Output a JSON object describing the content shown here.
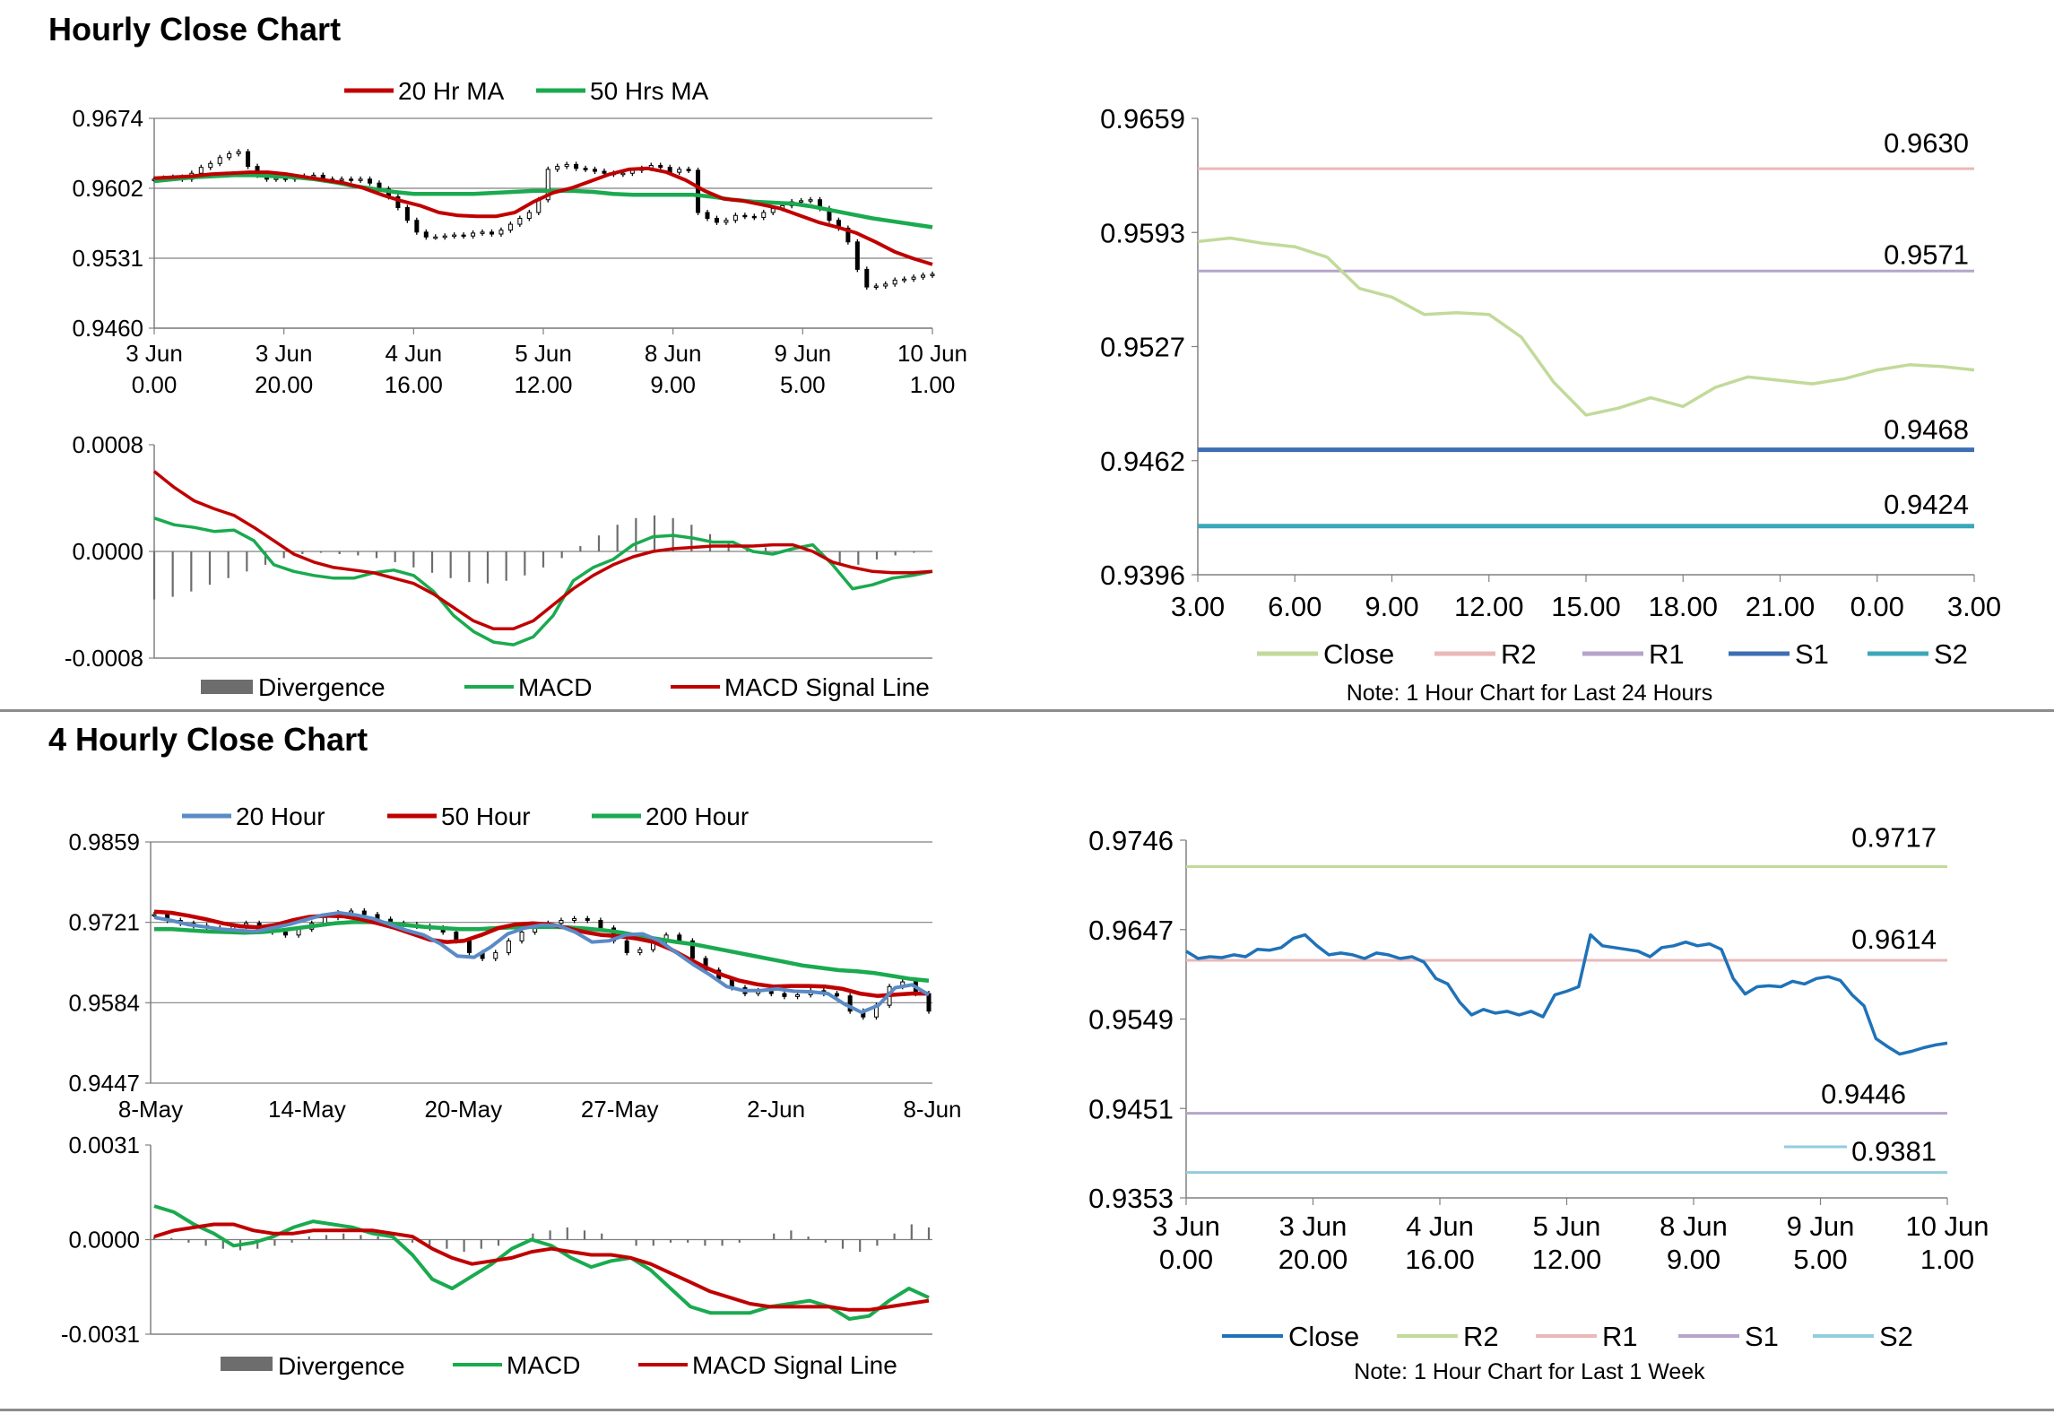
{
  "titles": {
    "hourly": "Hourly Close Chart",
    "four_hourly": "4 Hourly Close Chart"
  },
  "colors": {
    "red": "#c00000",
    "green": "#1aaa4f",
    "blue": "#5b8bc6",
    "dark_blue": "#3d6eb3",
    "teal": "#3ba7ba",
    "light_green": "#c2da9a",
    "pink": "#eab8b7",
    "lavender": "#b6a4cb",
    "close_blue": "#1f72b8",
    "light_teal": "#92cddc",
    "bar_gray": "#6d6d6d",
    "grid": "#808080"
  },
  "chart_data": [
    {
      "id": "hourly_price",
      "type": "line",
      "title": "",
      "ylim": [
        0.946,
        0.9674
      ],
      "yticks": [
        "0.9674",
        "0.9602",
        "0.9531",
        "0.9460"
      ],
      "xticks": [
        [
          "3 Jun",
          "0.00"
        ],
        [
          "3 Jun",
          "20.00"
        ],
        [
          "4 Jun",
          "16.00"
        ],
        [
          "5 Jun",
          "12.00"
        ],
        [
          "8 Jun",
          "9.00"
        ],
        [
          "9 Jun",
          "5.00"
        ],
        [
          "10 Jun",
          "1.00"
        ]
      ],
      "legend": [
        "20 Hr MA",
        "50 Hrs MA"
      ],
      "series": [
        {
          "name": "Close",
          "values": [
            0.9612,
            0.9613,
            0.9614,
            0.9612,
            0.9618,
            0.9624,
            0.9628,
            0.9634,
            0.9638,
            0.964,
            0.9625,
            0.9616,
            0.9612,
            0.9613,
            0.9612,
            0.9614,
            0.9615,
            0.9616,
            0.9612,
            0.9611,
            0.9612,
            0.9611,
            0.9612,
            0.9608,
            0.9602,
            0.9594,
            0.9583,
            0.957,
            0.9558,
            0.9553,
            0.9553,
            0.9554,
            0.9555,
            0.9554,
            0.9557,
            0.9558,
            0.9556,
            0.956,
            0.9566,
            0.9572,
            0.9578,
            0.9591,
            0.9622,
            0.9625,
            0.9627,
            0.9623,
            0.9622,
            0.962,
            0.9618,
            0.9617,
            0.9618,
            0.9621,
            0.9623,
            0.9626,
            0.9624,
            0.9619,
            0.9622,
            0.9621,
            0.9578,
            0.9572,
            0.9568,
            0.957,
            0.9575,
            0.9574,
            0.9573,
            0.9578,
            0.9582,
            0.9585,
            0.9589,
            0.959,
            0.9591,
            0.9582,
            0.957,
            0.9562,
            0.9548,
            0.952,
            0.9502,
            0.9503,
            0.9505,
            0.9509,
            0.951,
            0.9512,
            0.9514,
            0.9515
          ]
        },
        {
          "name": "20 Hr MA",
          "values": [
            0.9613,
            0.9614,
            0.9615,
            0.9617,
            0.9618,
            0.9619,
            0.9619,
            0.9617,
            0.9614,
            0.9611,
            0.9608,
            0.9603,
            0.9596,
            0.959,
            0.9585,
            0.9578,
            0.9575,
            0.9574,
            0.9574,
            0.9578,
            0.9589,
            0.9598,
            0.9603,
            0.961,
            0.9617,
            0.9622,
            0.9623,
            0.9619,
            0.9611,
            0.96,
            0.9592,
            0.959,
            0.9586,
            0.9582,
            0.9575,
            0.9568,
            0.9563,
            0.9557,
            0.9548,
            0.9538,
            0.9531,
            0.9525
          ]
        },
        {
          "name": "50 Hrs MA",
          "values": [
            0.961,
            0.9612,
            0.9614,
            0.9615,
            0.9616,
            0.9616,
            0.9615,
            0.9614,
            0.9612,
            0.9609,
            0.9605,
            0.9602,
            0.9599,
            0.9597,
            0.9597,
            0.9597,
            0.9597,
            0.9598,
            0.9599,
            0.96,
            0.96,
            0.96,
            0.9599,
            0.9597,
            0.9596,
            0.9596,
            0.9596,
            0.9596,
            0.9594,
            0.9591,
            0.9589,
            0.9588,
            0.9587,
            0.9584,
            0.958,
            0.9576,
            0.9572,
            0.9569,
            0.9566,
            0.9563
          ]
        }
      ]
    },
    {
      "id": "hourly_macd",
      "type": "line",
      "ylim": [
        -0.0008,
        0.0008
      ],
      "yticks": [
        "0.0008",
        "0.0000",
        "-0.0008"
      ],
      "legend": [
        "Divergence",
        "MACD",
        "MACD Signal Line"
      ],
      "series": [
        {
          "name": "Divergence",
          "values": [
            -0.00036,
            -0.00034,
            -0.0003,
            -0.00025,
            -0.0002,
            -0.00015,
            -0.0001,
            -5e-05,
            -2e-05,
            -1e-05,
            -2e-05,
            -3e-05,
            -5e-05,
            -8e-05,
            -0.00012,
            -0.00016,
            -0.0002,
            -0.00023,
            -0.00024,
            -0.00022,
            -0.00018,
            -0.00012,
            -5e-05,
            4e-05,
            0.00012,
            0.0002,
            0.00025,
            0.00027,
            0.00025,
            0.0002,
            0.00013,
            8e-05,
            5e-05,
            3e-05,
            1e-05,
            0.0,
            -4e-05,
            -0.0001,
            -0.0001,
            -6e-05,
            -3e-05,
            -1e-05,
            0.0
          ]
        },
        {
          "name": "MACD",
          "values": [
            0.00025,
            0.0002,
            0.00018,
            0.00015,
            0.00016,
            8e-05,
            -0.0001,
            -0.00015,
            -0.00018,
            -0.0002,
            -0.0002,
            -0.00016,
            -0.00014,
            -0.00018,
            -0.0003,
            -0.00048,
            -0.0006,
            -0.00068,
            -0.0007,
            -0.00064,
            -0.00048,
            -0.00022,
            -0.00012,
            -6e-05,
            5e-05,
            0.00011,
            0.00012,
            0.0001,
            7e-05,
            7e-05,
            0.0,
            -2e-05,
            2e-05,
            5e-05,
            -0.0001,
            -0.00028,
            -0.00025,
            -0.0002,
            -0.00018,
            -0.00015
          ]
        },
        {
          "name": "MACD Signal Line",
          "values": [
            0.0006,
            0.00048,
            0.00038,
            0.00032,
            0.00027,
            0.00018,
            8e-05,
            -2e-05,
            -8e-05,
            -0.00012,
            -0.00014,
            -0.00016,
            -0.0002,
            -0.00024,
            -0.00032,
            -0.00042,
            -0.00052,
            -0.00058,
            -0.00058,
            -0.00052,
            -0.0004,
            -0.00028,
            -0.00018,
            -0.0001,
            -4e-05,
            0.0,
            2e-05,
            3e-05,
            4e-05,
            4e-05,
            4e-05,
            5e-05,
            5e-05,
            0.0,
            -8e-05,
            -0.00012,
            -0.00015,
            -0.00016,
            -0.00016,
            -0.00015
          ]
        }
      ]
    },
    {
      "id": "hourly_levels",
      "type": "line",
      "ylim": [
        0.9396,
        0.9659
      ],
      "yticks": [
        "0.9659",
        "0.9593",
        "0.9527",
        "0.9462",
        "0.9396"
      ],
      "xticks": [
        "3.00",
        "6.00",
        "9.00",
        "12.00",
        "15.00",
        "18.00",
        "21.00",
        "0.00",
        "3.00"
      ],
      "note": "Note: 1 Hour Chart for Last 24 Hours",
      "legend": [
        "Close",
        "R2",
        "R1",
        "S1",
        "S2"
      ],
      "series": [
        {
          "name": "Close",
          "values": [
            0.9588,
            0.959,
            0.9587,
            0.9585,
            0.9579,
            0.9561,
            0.9556,
            0.9546,
            0.9547,
            0.9546,
            0.9533,
            0.9507,
            0.9488,
            0.9492,
            0.9498,
            0.9493,
            0.9504,
            0.951,
            0.9508,
            0.9506,
            0.9509,
            0.9514,
            0.9517,
            0.9516,
            0.9514
          ]
        }
      ],
      "levels": [
        {
          "name": "R2",
          "value": 0.963,
          "label": "0.9630"
        },
        {
          "name": "R1",
          "value": 0.9571,
          "label": "0.9571"
        },
        {
          "name": "S1",
          "value": 0.9468,
          "label": "0.9468"
        },
        {
          "name": "S2",
          "value": 0.9424,
          "label": "0.9424"
        }
      ]
    },
    {
      "id": "four_hourly_price",
      "type": "line",
      "ylim": [
        0.9447,
        0.9859
      ],
      "yticks": [
        "0.9859",
        "0.9721",
        "0.9584",
        "0.9447"
      ],
      "xticks": [
        "8-May",
        "14-May",
        "20-May",
        "27-May",
        "2-Jun",
        "8-Jun"
      ],
      "legend": [
        "20 Hour",
        "50 Hour",
        "200 Hour"
      ],
      "series": [
        {
          "name": "Close",
          "values": [
            0.9735,
            0.9725,
            0.972,
            0.9716,
            0.9712,
            0.9708,
            0.9715,
            0.972,
            0.9712,
            0.9705,
            0.97,
            0.971,
            0.972,
            0.973,
            0.9738,
            0.9741,
            0.9735,
            0.9727,
            0.972,
            0.9718,
            0.9715,
            0.9712,
            0.9705,
            0.969,
            0.967,
            0.966,
            0.967,
            0.969,
            0.9705,
            0.9715,
            0.972,
            0.9725,
            0.9728,
            0.9725,
            0.9712,
            0.969,
            0.967,
            0.9675,
            0.969,
            0.97,
            0.969,
            0.966,
            0.964,
            0.9625,
            0.961,
            0.96,
            0.9605,
            0.96,
            0.9595,
            0.9598,
            0.9605,
            0.96,
            0.9596,
            0.957,
            0.956,
            0.958,
            0.9612,
            0.962,
            0.96,
            0.957
          ]
        },
        {
          "name": "20 Hour",
          "values": [
            0.973,
            0.9725,
            0.9718,
            0.9714,
            0.971,
            0.9708,
            0.9706,
            0.9712,
            0.9718,
            0.9726,
            0.9734,
            0.9738,
            0.9734,
            0.9728,
            0.9718,
            0.9708,
            0.97,
            0.9685,
            0.9664,
            0.9662,
            0.968,
            0.9702,
            0.9712,
            0.9717,
            0.9716,
            0.9705,
            0.9688,
            0.969,
            0.97,
            0.9702,
            0.969,
            0.967,
            0.965,
            0.9632,
            0.9612,
            0.9605,
            0.9605,
            0.9608,
            0.9604,
            0.9603,
            0.96,
            0.9582,
            0.9568,
            0.958,
            0.961,
            0.9615,
            0.9598
          ]
        },
        {
          "name": "50 Hour",
          "values": [
            0.974,
            0.9738,
            0.9733,
            0.9727,
            0.972,
            0.9715,
            0.9713,
            0.9717,
            0.9725,
            0.9731,
            0.9733,
            0.9732,
            0.9727,
            0.972,
            0.9712,
            0.9702,
            0.9692,
            0.9688,
            0.969,
            0.97,
            0.9712,
            0.9718,
            0.972,
            0.9718,
            0.9712,
            0.9705,
            0.97,
            0.9698,
            0.9694,
            0.9688,
            0.9676,
            0.966,
            0.9645,
            0.9632,
            0.9622,
            0.9616,
            0.9612,
            0.9613,
            0.9613,
            0.9612,
            0.9608,
            0.96,
            0.9596,
            0.9598,
            0.96,
            0.96
          ]
        },
        {
          "name": "200 Hour",
          "values": [
            0.971,
            0.971,
            0.9708,
            0.9706,
            0.9705,
            0.9704,
            0.9705,
            0.9708,
            0.9712,
            0.9716,
            0.972,
            0.9722,
            0.9722,
            0.972,
            0.9717,
            0.9714,
            0.9712,
            0.971,
            0.971,
            0.9712,
            0.9713,
            0.9714,
            0.9714,
            0.9713,
            0.9711,
            0.9708,
            0.9704,
            0.9698,
            0.9693,
            0.9688,
            0.9684,
            0.9678,
            0.9672,
            0.9666,
            0.966,
            0.9654,
            0.9648,
            0.9644,
            0.964,
            0.9638,
            0.9635,
            0.963,
            0.9625,
            0.9622
          ]
        }
      ]
    },
    {
      "id": "four_hourly_macd",
      "type": "line",
      "ylim": [
        -0.0031,
        0.0031
      ],
      "yticks": [
        "0.0031",
        "0.0000",
        "-0.0031"
      ],
      "legend": [
        "Divergence",
        "MACD",
        "MACD Signal Line"
      ],
      "series": [
        {
          "name": "Divergence",
          "values": [
            0.0001,
            5e-05,
            -0.0001,
            -0.0002,
            -0.0003,
            -0.00035,
            -0.0003,
            -0.0002,
            -0.0001,
            0.0001,
            0.00015,
            0.0002,
            0.00015,
            0.0001,
            0.0,
            -0.0001,
            -0.0002,
            -0.0003,
            -0.0004,
            -0.0003,
            -0.0002,
            0.0,
            0.0002,
            0.0003,
            0.0004,
            0.0003,
            0.0002,
            0.0,
            -0.0002,
            -0.0002,
            -0.0001,
            -0.0001,
            -0.0002,
            -0.0002,
            -0.0001,
            0.0,
            0.0002,
            0.0003,
            0.0001,
            -0.0001,
            -0.0003,
            -0.0004,
            -0.0002,
            0.0002,
            0.0005,
            0.0004
          ]
        },
        {
          "name": "MACD",
          "values": [
            0.0011,
            0.0009,
            0.0005,
            0.0002,
            -0.0002,
            -0.0001,
            0.0001,
            0.0004,
            0.0006,
            0.0005,
            0.0004,
            0.0002,
            0.0001,
            -0.0005,
            -0.0013,
            -0.0016,
            -0.0012,
            -0.0008,
            -0.0003,
            0.0,
            -0.0002,
            -0.0006,
            -0.0009,
            -0.0007,
            -0.0006,
            -0.001,
            -0.0016,
            -0.0022,
            -0.0024,
            -0.0024,
            -0.0024,
            -0.0022,
            -0.0021,
            -0.002,
            -0.0022,
            -0.0026,
            -0.0025,
            -0.002,
            -0.0016,
            -0.0019
          ]
        },
        {
          "name": "MACD Signal Line",
          "values": [
            0.0001,
            0.0003,
            0.0004,
            0.0005,
            0.0005,
            0.0003,
            0.0002,
            0.0002,
            0.0003,
            0.0003,
            0.0003,
            0.0003,
            0.0002,
            0.0001,
            -0.0003,
            -0.0006,
            -0.0008,
            -0.0007,
            -0.0006,
            -0.0004,
            -0.0003,
            -0.0004,
            -0.0005,
            -0.0005,
            -0.0006,
            -0.0008,
            -0.0011,
            -0.0014,
            -0.0017,
            -0.0019,
            -0.0021,
            -0.0022,
            -0.0022,
            -0.0022,
            -0.0022,
            -0.0023,
            -0.0023,
            -0.0022,
            -0.0021,
            -0.002
          ]
        }
      ]
    },
    {
      "id": "four_hourly_levels",
      "type": "line",
      "ylim": [
        0.9353,
        0.9746
      ],
      "yticks": [
        "0.9746",
        "0.9647",
        "0.9549",
        "0.9451",
        "0.9353"
      ],
      "xticks": [
        [
          "3 Jun",
          "0.00"
        ],
        [
          "3 Jun",
          "20.00"
        ],
        [
          "4 Jun",
          "16.00"
        ],
        [
          "5 Jun",
          "12.00"
        ],
        [
          "8 Jun",
          "9.00"
        ],
        [
          "9 Jun",
          "5.00"
        ],
        [
          "10 Jun",
          "1.00"
        ]
      ],
      "note": "Note: 1 Hour Chart for Last 1 Week",
      "legend": [
        "Close",
        "R2",
        "R1",
        "S1",
        "S2"
      ],
      "series": [
        {
          "name": "Close",
          "values": [
            0.9624,
            0.9616,
            0.9618,
            0.9617,
            0.962,
            0.9618,
            0.9626,
            0.9625,
            0.9628,
            0.9638,
            0.9642,
            0.963,
            0.962,
            0.9622,
            0.962,
            0.9616,
            0.9622,
            0.962,
            0.9616,
            0.9618,
            0.9612,
            0.9594,
            0.9588,
            0.9568,
            0.9554,
            0.956,
            0.9556,
            0.9558,
            0.9554,
            0.9558,
            0.9552,
            0.9576,
            0.958,
            0.9585,
            0.9642,
            0.963,
            0.9628,
            0.9626,
            0.9624,
            0.9618,
            0.9628,
            0.963,
            0.9634,
            0.963,
            0.9632,
            0.9626,
            0.9594,
            0.9577,
            0.9585,
            0.9586,
            0.9585,
            0.9591,
            0.9588,
            0.9594,
            0.9596,
            0.9592,
            0.9576,
            0.9564,
            0.9528,
            0.9519,
            0.9511,
            0.9514,
            0.9518,
            0.9521,
            0.9523
          ]
        }
      ],
      "levels": [
        {
          "name": "R2",
          "value": 0.9717,
          "label": "0.9717"
        },
        {
          "name": "R1",
          "value": 0.9614,
          "label": "0.9614"
        },
        {
          "name": "S1",
          "value": 0.9446,
          "label": "0.9446"
        },
        {
          "name": "S2",
          "value": 0.9381,
          "label": "0.9381"
        }
      ]
    }
  ]
}
